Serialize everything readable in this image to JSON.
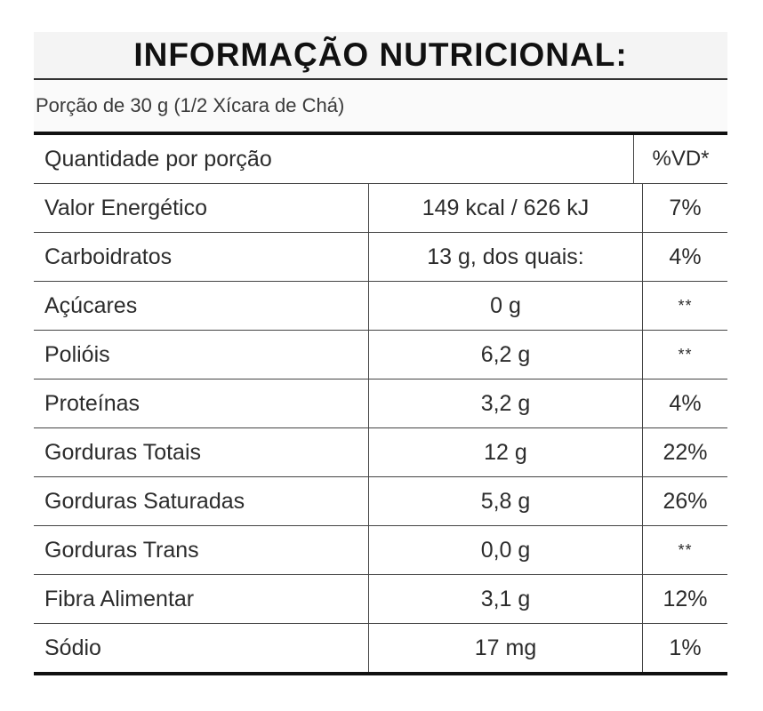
{
  "title": "INFORMAÇÃO NUTRICIONAL:",
  "portion": "Porção de 30 g (1/2 Xícara de Chá)",
  "header": {
    "quantity_label": "Quantidade por porção",
    "vd_label": "%VD*"
  },
  "rows": [
    {
      "nutrient": "Valor Energético",
      "amount": "149 kcal / 626 kJ",
      "vd": "7%"
    },
    {
      "nutrient": "Carboidratos",
      "amount": "13 g, dos quais:",
      "vd": "4%"
    },
    {
      "nutrient": "Açúcares",
      "amount": "0 g",
      "vd": "**"
    },
    {
      "nutrient": "Polióis",
      "amount": "6,2 g",
      "vd": "**"
    },
    {
      "nutrient": "Proteínas",
      "amount": "3,2 g",
      "vd": "4%"
    },
    {
      "nutrient": "Gorduras Totais",
      "amount": "12 g",
      "vd": "22%"
    },
    {
      "nutrient": "Gorduras Saturadas",
      "amount": "5,8 g",
      "vd": "26%"
    },
    {
      "nutrient": "Gorduras Trans",
      "amount": "0,0 g",
      "vd": "**"
    },
    {
      "nutrient": "Fibra Alimentar",
      "amount": "3,1 g",
      "vd": "12%"
    },
    {
      "nutrient": "Sódio",
      "amount": "17 mg",
      "vd": "1%"
    }
  ]
}
